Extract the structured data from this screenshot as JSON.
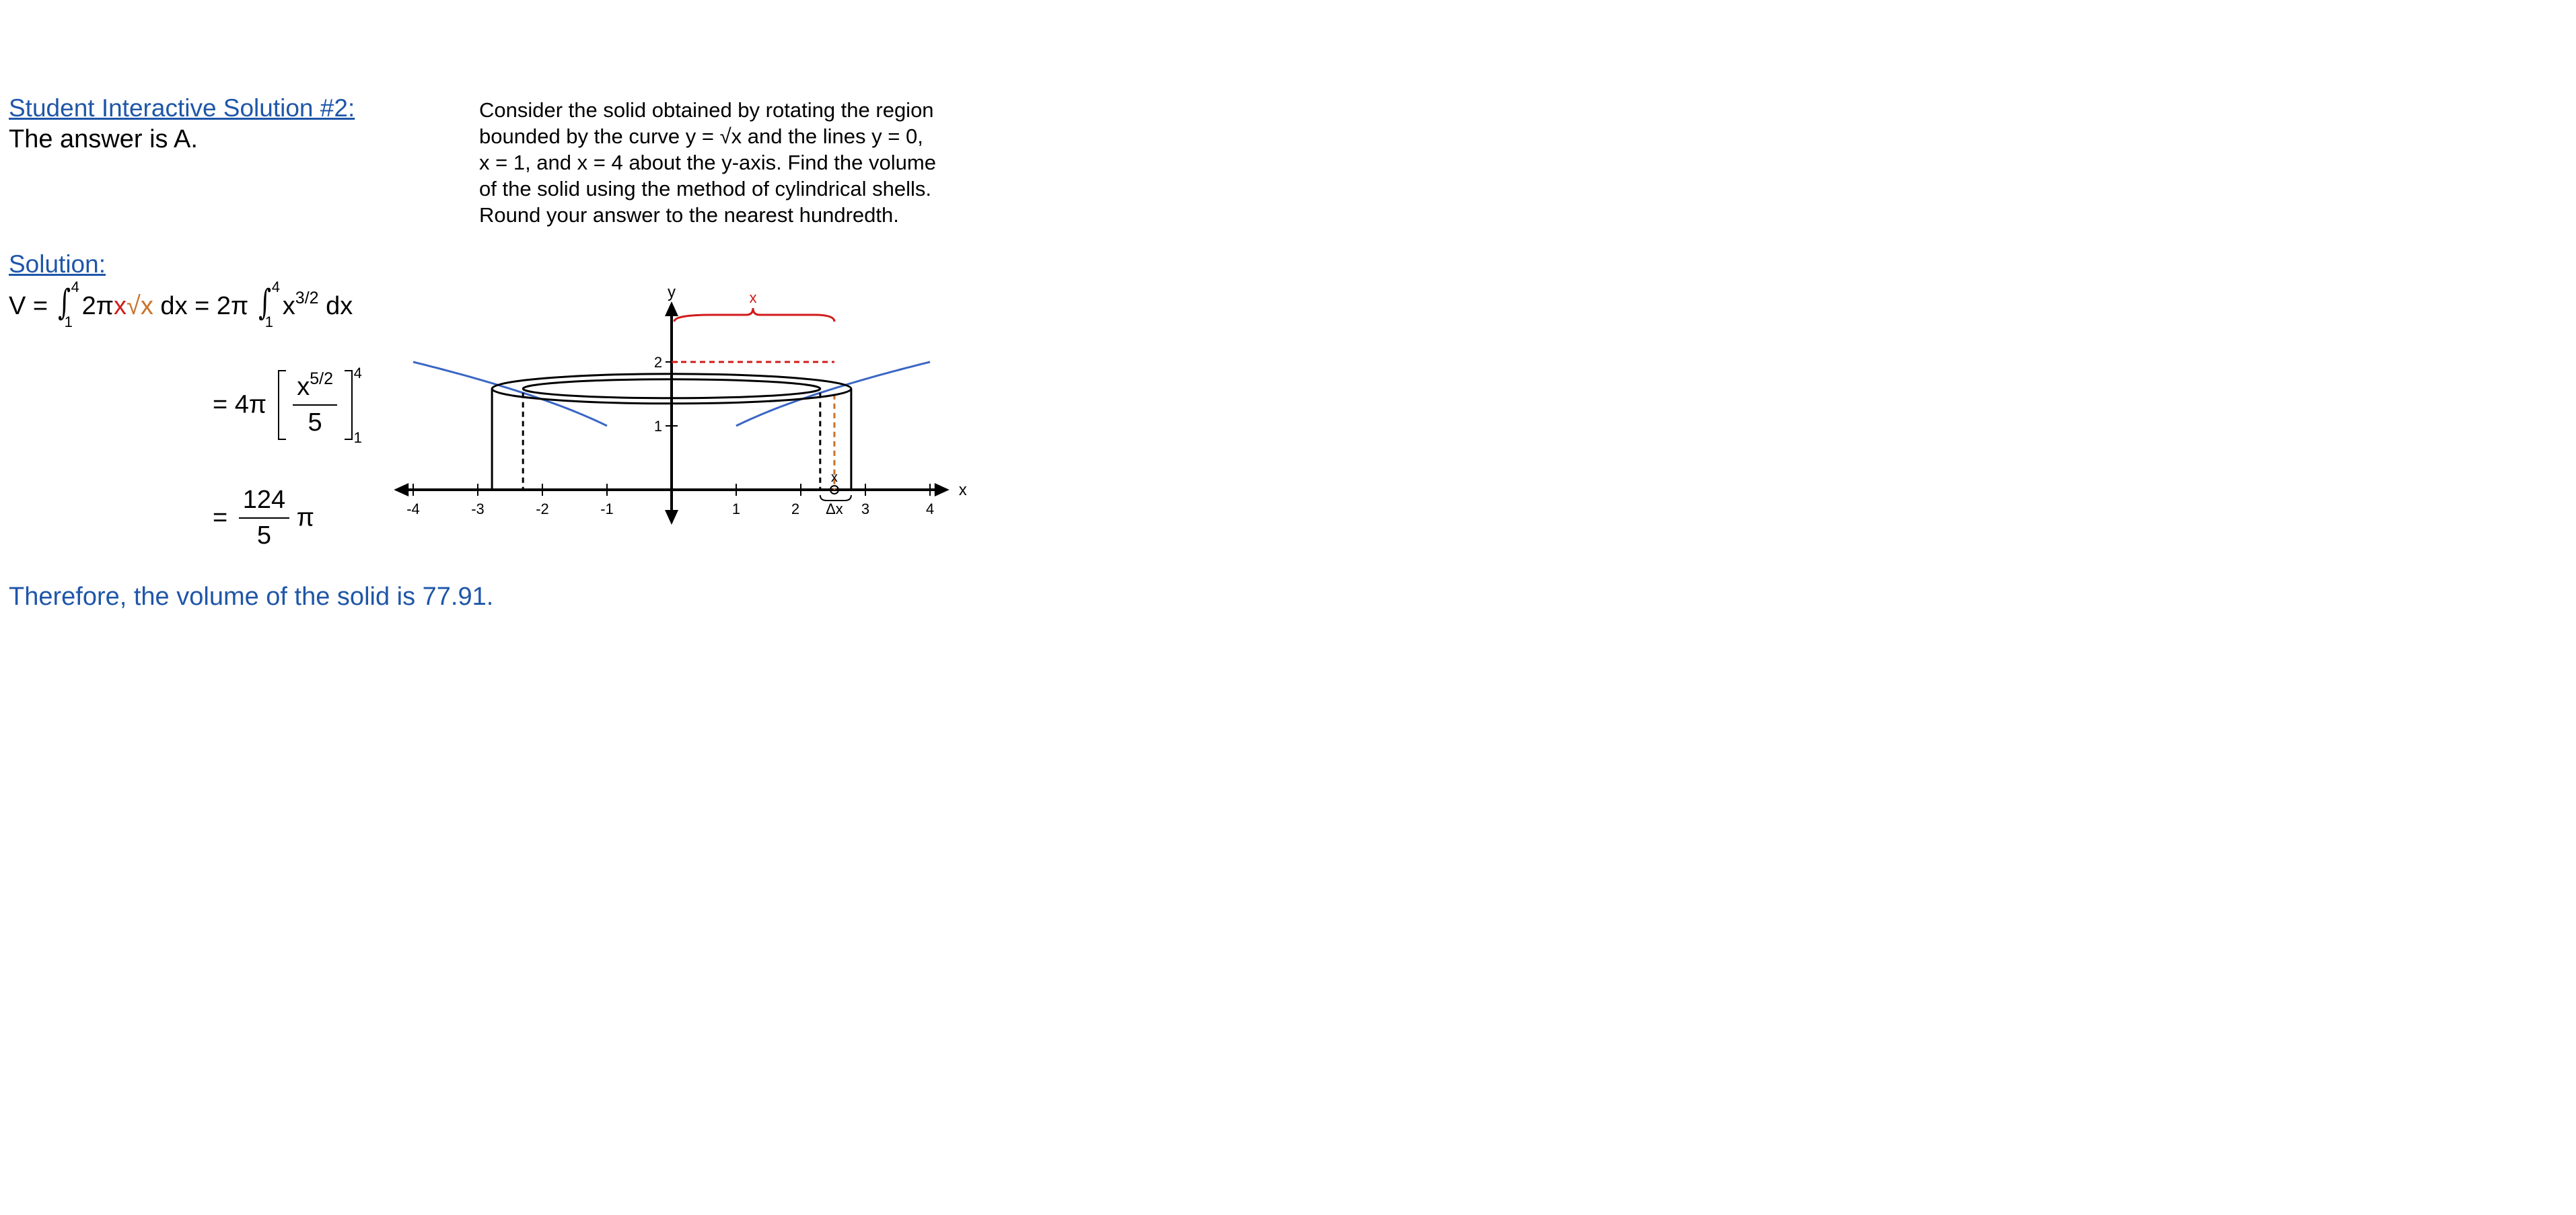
{
  "heading": {
    "link_label": "Student Interactive Solution #2:",
    "answer_text": "The answer is A."
  },
  "problem": {
    "line1": "Consider the solid obtained by rotating the region",
    "line2_a": "bounded by the curve y = ",
    "line2_sqrt": "√x",
    "line2_b": " and the lines y = 0,",
    "line3": "x = 1, and x = 4 about the y-axis.  Find the volume",
    "line4": "of the solid using the method of cylindrical shells.",
    "line5": "Round your answer to the nearest hundredth."
  },
  "solution": {
    "label": "Solution:",
    "step1": {
      "lhs": "V = ",
      "int_lower": "1",
      "int_upper": "4",
      "coef": "2π",
      "radius": "x",
      "height": "√x",
      "dx": " dx = 2π ",
      "int2_lower": "1",
      "int2_upper": "4",
      "integrand2": "x",
      "exponent2": "3/2",
      "dx2": " dx"
    },
    "step2": {
      "prefix": "= 4π",
      "numerator_base": "x",
      "numerator_exp": "5/2",
      "denominator": "5",
      "upper": "4",
      "lower": "1"
    },
    "step3": {
      "prefix": "=",
      "numerator": "124",
      "denominator": "5",
      "suffix": "π"
    },
    "conclusion": "Therefore, the volume of the solid is 77.91."
  },
  "figure": {
    "y_axis_label": "y",
    "x_axis_label": "x",
    "x_ticks": [
      "-4",
      "-3",
      "-2",
      "-1",
      "1",
      "2",
      "3",
      "4"
    ],
    "y_ticks": [
      "1",
      "2"
    ],
    "radius_label": "x",
    "shell_x_label": "x",
    "delta_label": "Δx",
    "colors": {
      "curve": "#3a66c4",
      "radius": "#d11a1a",
      "height": "#c8732a",
      "axis": "#000000"
    }
  }
}
